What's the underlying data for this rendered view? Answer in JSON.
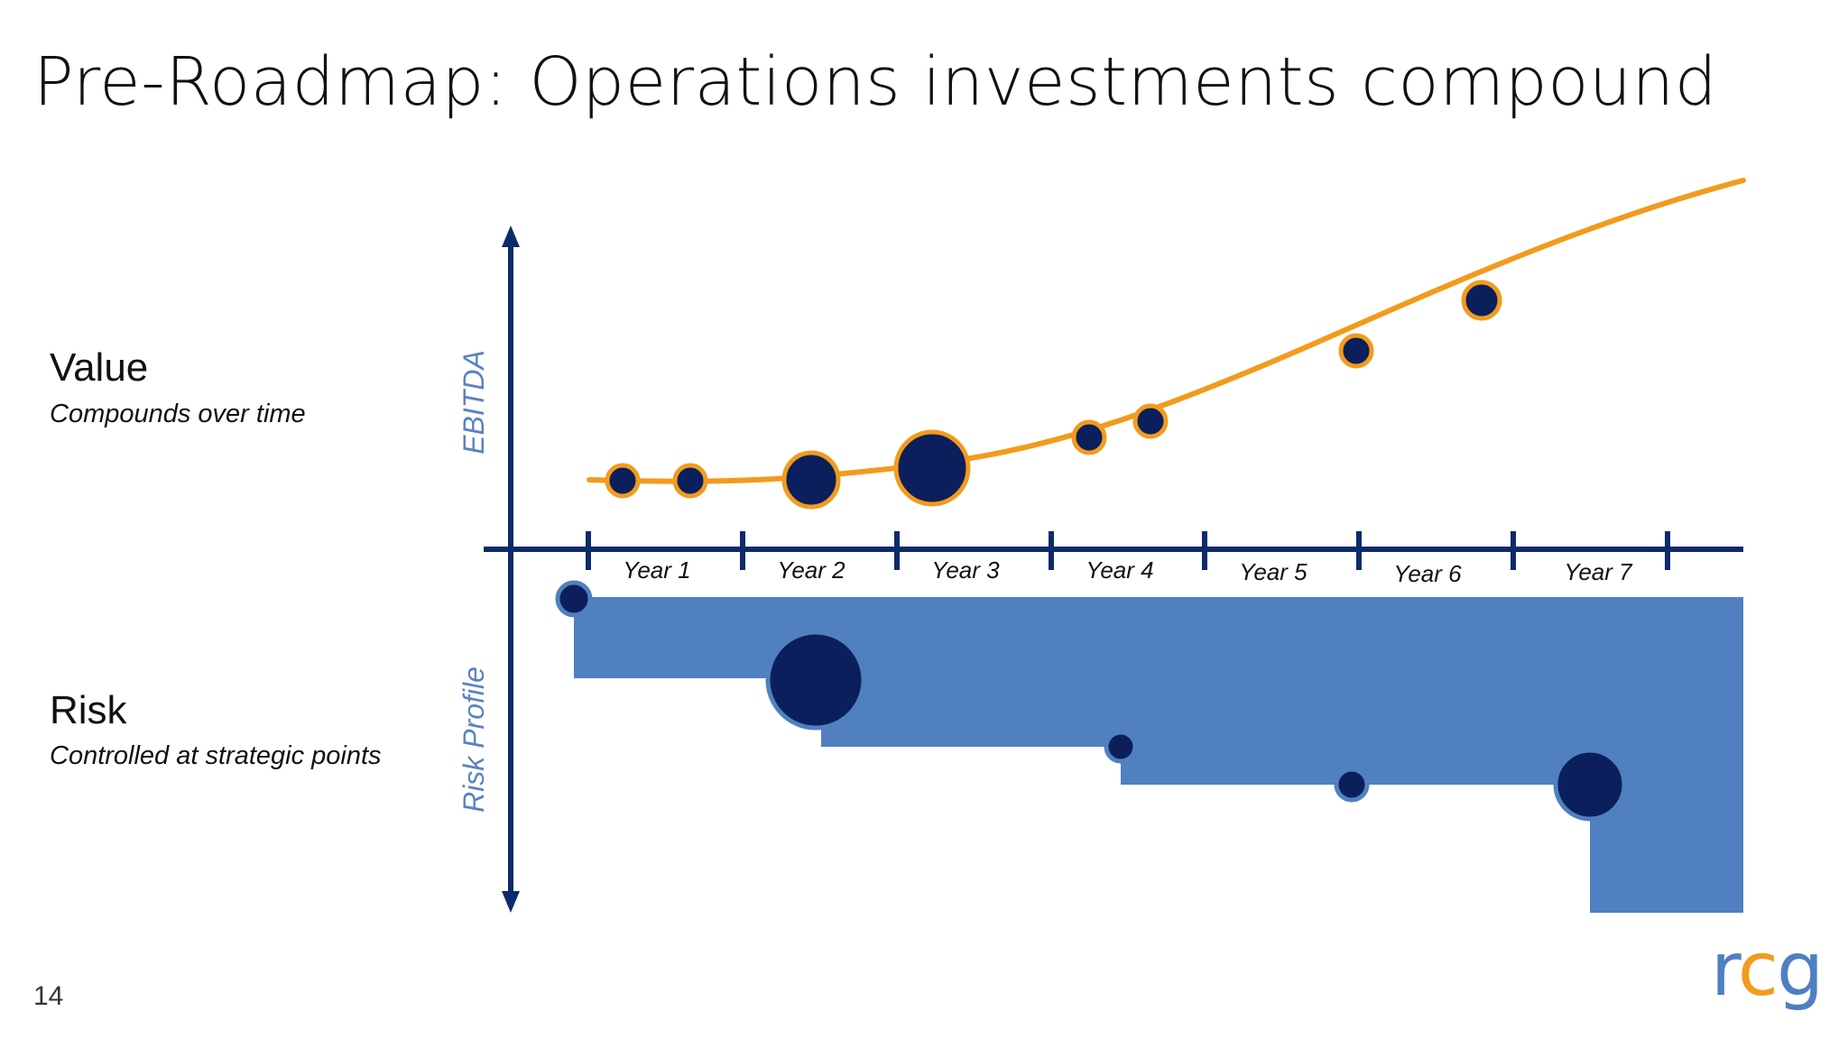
{
  "slide": {
    "title": "Pre-Roadmap: Operations investments compound",
    "page_number": "14"
  },
  "value": {
    "heading": "Value",
    "subheading": "Compounds over time"
  },
  "risk": {
    "heading": "Risk",
    "subheading": "Controlled at strategic points"
  },
  "axes": {
    "y_label_upper": "EBITDA",
    "y_label_lower": "Risk Profile"
  },
  "timeline": {
    "labels": [
      "Year 1",
      "Year 2",
      "Year 3",
      "Year 4",
      "Year 5",
      "Year 6",
      "Year 7"
    ]
  },
  "logo": {
    "text": "rcg",
    "letters": [
      "r",
      "c",
      "g"
    ]
  },
  "colors": {
    "axis": "#0d2a6b",
    "curve": "#f29b1d",
    "dot": "#0b1f5c",
    "risk_fill": "#5080bf",
    "label_blue": "#5a83c0"
  }
}
